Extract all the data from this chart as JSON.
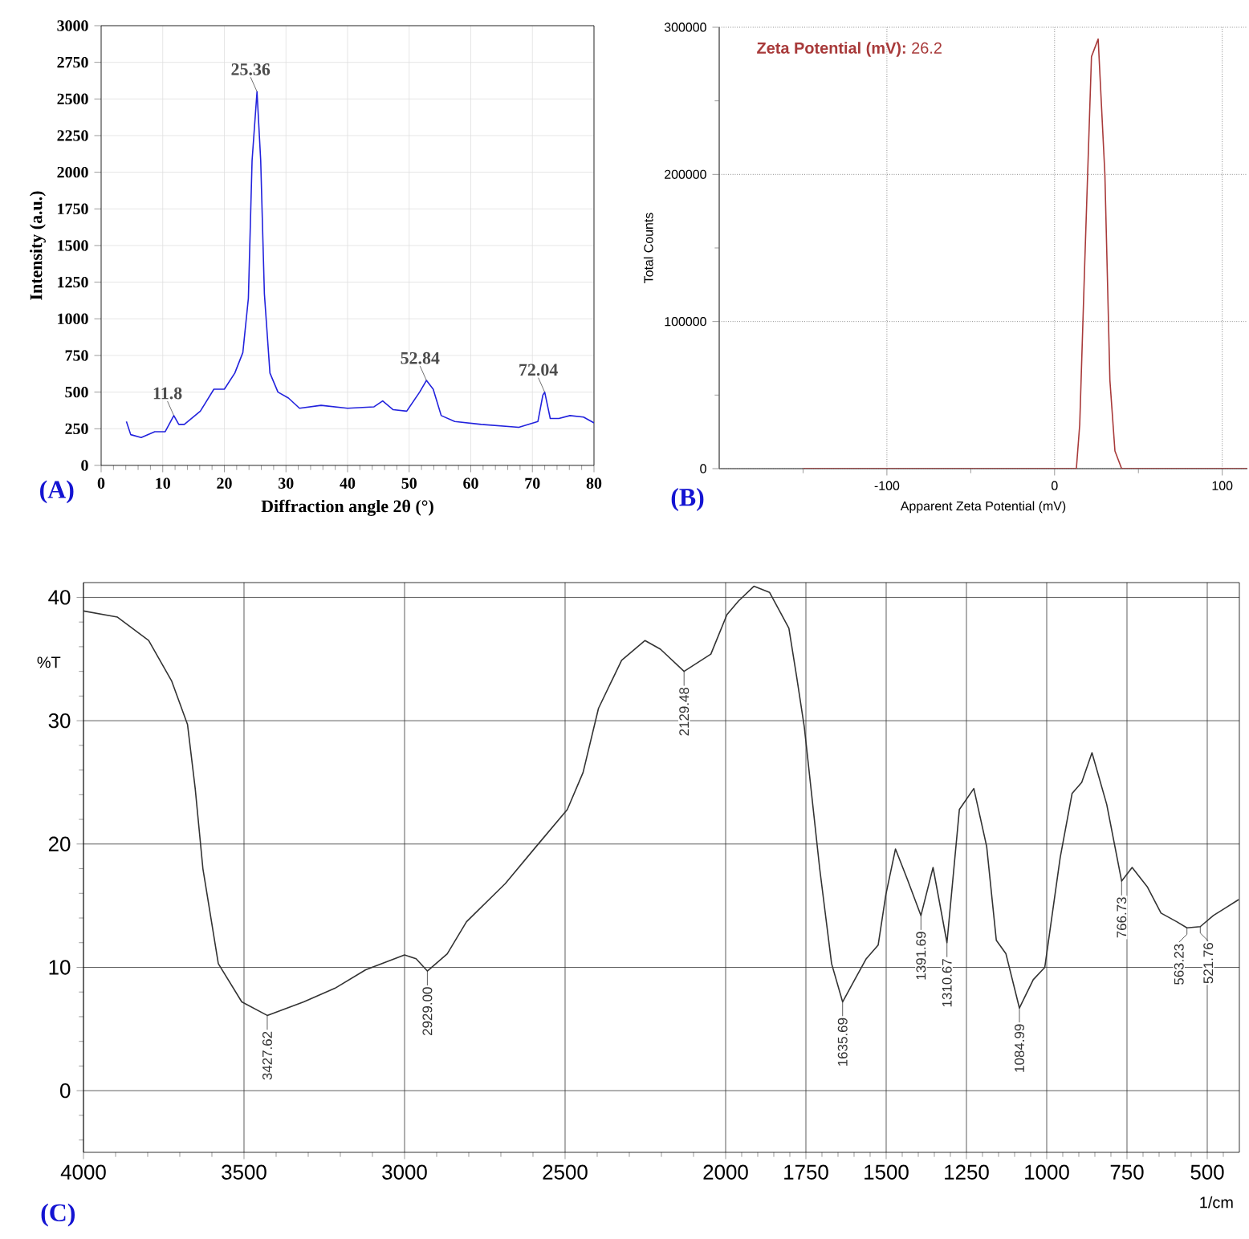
{
  "chart_data": [
    {
      "type": "line",
      "title": "(A)",
      "xlabel": "Diffraction angle 2θ (°)",
      "ylabel": "Intensity (a.u.)",
      "xlim": [
        0,
        80
      ],
      "ylim": [
        0,
        3000
      ],
      "xticks": [
        0,
        10,
        20,
        30,
        40,
        50,
        60,
        70,
        80,
        {
          "value": 2,
          "label": null
        },
        {
          "value": 4,
          "label": null
        },
        {
          "value": 6,
          "label": null
        },
        {
          "value": 8,
          "label": null
        },
        {
          "value": 12,
          "label": null
        },
        {
          "value": 14,
          "label": null
        },
        {
          "value": 16,
          "label": null
        },
        {
          "value": 18,
          "label": null
        },
        {
          "value": 22,
          "label": null
        },
        {
          "value": 24,
          "label": null
        },
        {
          "value": 26,
          "label": null
        },
        {
          "value": 28,
          "label": null
        },
        {
          "value": 32,
          "label": null
        },
        {
          "value": 34,
          "label": null
        },
        {
          "value": 36,
          "label": null
        },
        {
          "value": 38,
          "label": null
        },
        {
          "value": 42,
          "label": null
        },
        {
          "value": 44,
          "label": null
        },
        {
          "value": 46,
          "label": null
        },
        {
          "value": 48,
          "label": null
        },
        {
          "value": 52,
          "label": null
        },
        {
          "value": 54,
          "label": null
        },
        {
          "value": 56,
          "label": null
        },
        {
          "value": 58,
          "label": null
        },
        {
          "value": 62,
          "label": null
        },
        {
          "value": 64,
          "label": null
        },
        {
          "value": 66,
          "label": null
        },
        {
          "value": 68,
          "label": null
        },
        {
          "value": 72,
          "label": null
        },
        {
          "value": 74,
          "label": null
        },
        {
          "value": 76,
          "label": null
        },
        {
          "value": 78,
          "label": null
        }
      ],
      "yticks": [
        0,
        250,
        500,
        750,
        1000,
        1250,
        1500,
        1750,
        2000,
        2250,
        2500,
        2750,
        3000
      ],
      "grid": true,
      "series": [
        {
          "color": "#2222dd",
          "x": [
            4.1,
            4.8,
            6.5,
            8.7,
            10.4,
            11.8,
            12.6,
            13.5,
            16.1,
            18.3,
            20.0,
            21.7,
            23.0,
            23.9,
            24.5,
            25.3,
            25.9,
            26.5,
            27.4,
            28.7,
            30.4,
            32.2,
            35.7,
            40.0,
            44.3,
            45.7,
            47.4,
            49.6,
            51.7,
            52.8,
            53.9,
            55.2,
            57.4,
            61.7,
            67.8,
            70.9,
            71.7,
            72.0,
            72.9,
            74.3,
            76.1,
            78.3,
            80.0
          ],
          "values": [
            300,
            210,
            190,
            230,
            230,
            340,
            280,
            280,
            370,
            520,
            520,
            630,
            770,
            1140,
            2080,
            2550,
            2080,
            1170,
            630,
            500,
            460,
            390,
            410,
            390,
            400,
            440,
            380,
            370,
            500,
            580,
            520,
            340,
            300,
            280,
            260,
            300,
            480,
            500,
            320,
            320,
            340,
            330,
            290
          ]
        }
      ],
      "annotations": [
        {
          "text": "11.8",
          "x": 11.8,
          "y": 340
        },
        {
          "text": "25.36",
          "x": 25.3,
          "y": 2550
        },
        {
          "text": "52.84",
          "x": 52.8,
          "y": 580
        },
        {
          "text": "72.04",
          "x": 72.0,
          "y": 500
        }
      ]
    },
    {
      "type": "line",
      "title": "(B)",
      "xlabel": "Apparent Zeta Potential (mV)",
      "ylabel": "Total Counts",
      "xlim": [
        -200,
        115
      ],
      "ylim": [
        0,
        300000
      ],
      "xticks": [
        -100,
        0,
        100,
        {
          "value": -150,
          "label": null
        },
        {
          "value": -50,
          "label": null
        },
        {
          "value": 50,
          "label": null
        }
      ],
      "yticks": [
        0,
        100000,
        200000,
        300000,
        {
          "value": 50000,
          "label": null
        },
        {
          "value": 150000,
          "label": null
        },
        {
          "value": 250000,
          "label": null
        }
      ],
      "grid": true,
      "series": [
        {
          "color": "#a83a3a",
          "x": [
            -150,
            13,
            15,
            18,
            22,
            26,
            30,
            33,
            36,
            40,
            115
          ],
          "values": [
            0,
            0,
            30000,
            140000,
            280000,
            292000,
            200000,
            60000,
            12000,
            0,
            0
          ]
        }
      ],
      "annotations": [
        "**Zeta Potential (mV):**  26.2"
      ]
    },
    {
      "type": "line",
      "title": "(C)",
      "xlabel": "1/cm",
      "ylabel": "%T",
      "xlim": [
        4000,
        400
      ],
      "ylim": [
        -5,
        41.2
      ],
      "xticks": [
        4000,
        3500,
        3000,
        2500,
        2000,
        1750,
        1500,
        1250,
        1000,
        750,
        500,
        {
          "value": 3900,
          "label": null
        },
        {
          "value": 3800,
          "label": null
        },
        {
          "value": 3700,
          "label": null
        },
        {
          "value": 3600,
          "label": null
        },
        {
          "value": 3400,
          "label": null
        },
        {
          "value": 3300,
          "label": null
        },
        {
          "value": 3200,
          "label": null
        },
        {
          "value": 3100,
          "label": null
        },
        {
          "value": 2900,
          "label": null
        },
        {
          "value": 2800,
          "label": null
        },
        {
          "value": 2700,
          "label": null
        },
        {
          "value": 2600,
          "label": null
        },
        {
          "value": 2400,
          "label": null
        },
        {
          "value": 2300,
          "label": null
        },
        {
          "value": 2200,
          "label": null
        },
        {
          "value": 2100,
          "label": null
        },
        {
          "value": 1950,
          "label": null
        },
        {
          "value": 1900,
          "label": null
        },
        {
          "value": 1850,
          "label": null
        },
        {
          "value": 1800,
          "label": null
        },
        {
          "value": 1700,
          "label": null
        },
        {
          "value": 1650,
          "label": null
        },
        {
          "value": 1600,
          "label": null
        },
        {
          "value": 1550,
          "label": null
        },
        {
          "value": 1450,
          "label": null
        },
        {
          "value": 1400,
          "label": null
        },
        {
          "value": 1350,
          "label": null
        },
        {
          "value": 1300,
          "label": null
        },
        {
          "value": 1200,
          "label": null
        },
        {
          "value": 1150,
          "label": null
        },
        {
          "value": 1100,
          "label": null
        },
        {
          "value": 1050,
          "label": null
        },
        {
          "value": 950,
          "label": null
        },
        {
          "value": 900,
          "label": null
        },
        {
          "value": 850,
          "label": null
        },
        {
          "value": 800,
          "label": null
        },
        {
          "value": 700,
          "label": null
        },
        {
          "value": 650,
          "label": null
        },
        {
          "value": 600,
          "label": null
        },
        {
          "value": 550,
          "label": null
        },
        {
          "value": 450,
          "label": null
        }
      ],
      "yticks": [
        0,
        10,
        20,
        30,
        40,
        {
          "value": -4,
          "label": null
        },
        {
          "value": -2,
          "label": null
        },
        {
          "value": 2,
          "label": null
        },
        {
          "value": 4,
          "label": null
        },
        {
          "value": 6,
          "label": null
        },
        {
          "value": 8,
          "label": null
        },
        {
          "value": 12,
          "label": null
        },
        {
          "value": 14,
          "label": null
        },
        {
          "value": 16,
          "label": null
        },
        {
          "value": 18,
          "label": null
        },
        {
          "value": 22,
          "label": null
        },
        {
          "value": 24,
          "label": null
        },
        {
          "value": 26,
          "label": null
        },
        {
          "value": 28,
          "label": null
        },
        {
          "value": 32,
          "label": null
        },
        {
          "value": 34,
          "label": null
        },
        {
          "value": 36,
          "label": null
        },
        {
          "value": 38,
          "label": null
        }
      ],
      "grid": true,
      "series": [
        {
          "color": "#333333",
          "x": [
            4000,
            3894,
            3797,
            3725,
            3676,
            3652,
            3628,
            3580,
            3507,
            3427.62,
            3314,
            3217,
            3121,
            3000,
            2964,
            2929,
            2867,
            2807,
            2686,
            2590,
            2493,
            2444,
            2396,
            2324,
            2251,
            2203,
            2129.48,
            2046,
            1996,
            1960,
            1912,
            1863,
            1803,
            1779,
            1755,
            1707,
            1670,
            1635.69,
            1598,
            1562,
            1525,
            1501,
            1471,
            1435,
            1391.69,
            1354,
            1310.67,
            1272,
            1227,
            1187,
            1157,
            1127,
            1084.99,
            1042,
            1006,
            958,
            921,
            891,
            859,
            813,
            766.73,
            734,
            686,
            644,
            595,
            563.23,
            521.76,
            481,
            402
          ],
          "values": [
            38.9,
            38.4,
            36.5,
            33.2,
            29.7,
            24.5,
            18,
            10.3,
            7.2,
            6.1,
            7.2,
            8.3,
            9.8,
            11.0,
            10.7,
            9.7,
            11.1,
            13.7,
            16.8,
            19.8,
            22.8,
            25.8,
            31,
            34.9,
            36.5,
            35.8,
            34.0,
            35.4,
            38.6,
            39.7,
            40.9,
            40.4,
            37.5,
            33.6,
            29.5,
            18,
            10.3,
            7.2,
            9.0,
            10.7,
            11.8,
            15.9,
            19.6,
            17.2,
            14.2,
            18.1,
            12.0,
            22.8,
            24.5,
            19.8,
            12.2,
            11.1,
            6.7,
            9.0,
            10.0,
            18.9,
            24.1,
            25.0,
            27.4,
            23.2,
            17.0,
            18.1,
            16.5,
            14.4,
            13.7,
            13.2,
            13.3,
            14.2,
            15.5
          ]
        }
      ],
      "annotations": [
        {
          "text": "3427.62",
          "x": 3427.62,
          "y": 6.1
        },
        {
          "text": "2929.00",
          "x": 2929,
          "y": 9.7
        },
        {
          "text": "2129.48",
          "x": 2129.48,
          "y": 34.0
        },
        {
          "text": "1635.69",
          "x": 1635.69,
          "y": 7.2
        },
        {
          "text": "1391.69",
          "x": 1391.69,
          "y": 14.2
        },
        {
          "text": "1310.67",
          "x": 1310.67,
          "y": 12.0
        },
        {
          "text": "1084.99",
          "x": 1084.99,
          "y": 6.7
        },
        {
          "text": "766.73",
          "x": 766.73,
          "y": 17.0
        },
        {
          "text": "563.23",
          "x": 563.23,
          "y": 13.2
        },
        {
          "text": "521.76",
          "x": 521.76,
          "y": 13.3
        }
      ]
    }
  ]
}
